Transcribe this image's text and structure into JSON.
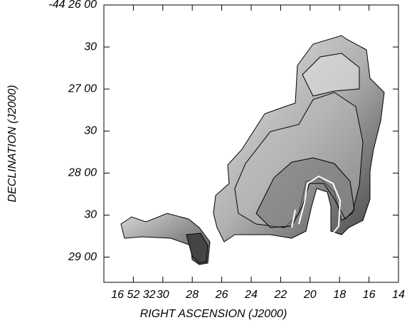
{
  "chart_data": {
    "type": "image",
    "xlabel": "RIGHT ASCENSION (J2000)",
    "ylabel": "DECLINATION (J2000)",
    "xlim": [
      34,
      14
    ],
    "ylim": [
      26,
      29.3
    ],
    "xticks": [
      {
        "value": 32,
        "label": "16 52 32"
      },
      30,
      28,
      26,
      24,
      22,
      20,
      18,
      16,
      14
    ],
    "yticks": [
      {
        "value": 26,
        "label": "-44 26 00"
      },
      {
        "value": 26.5,
        "label": "30"
      },
      {
        "value": 27,
        "label": "27 00"
      },
      {
        "value": 27.5,
        "label": "30"
      },
      {
        "value": 28,
        "label": "28 00"
      },
      {
        "value": 28.5,
        "label": "30"
      },
      {
        "value": 29,
        "label": "29 00"
      }
    ]
  }
}
